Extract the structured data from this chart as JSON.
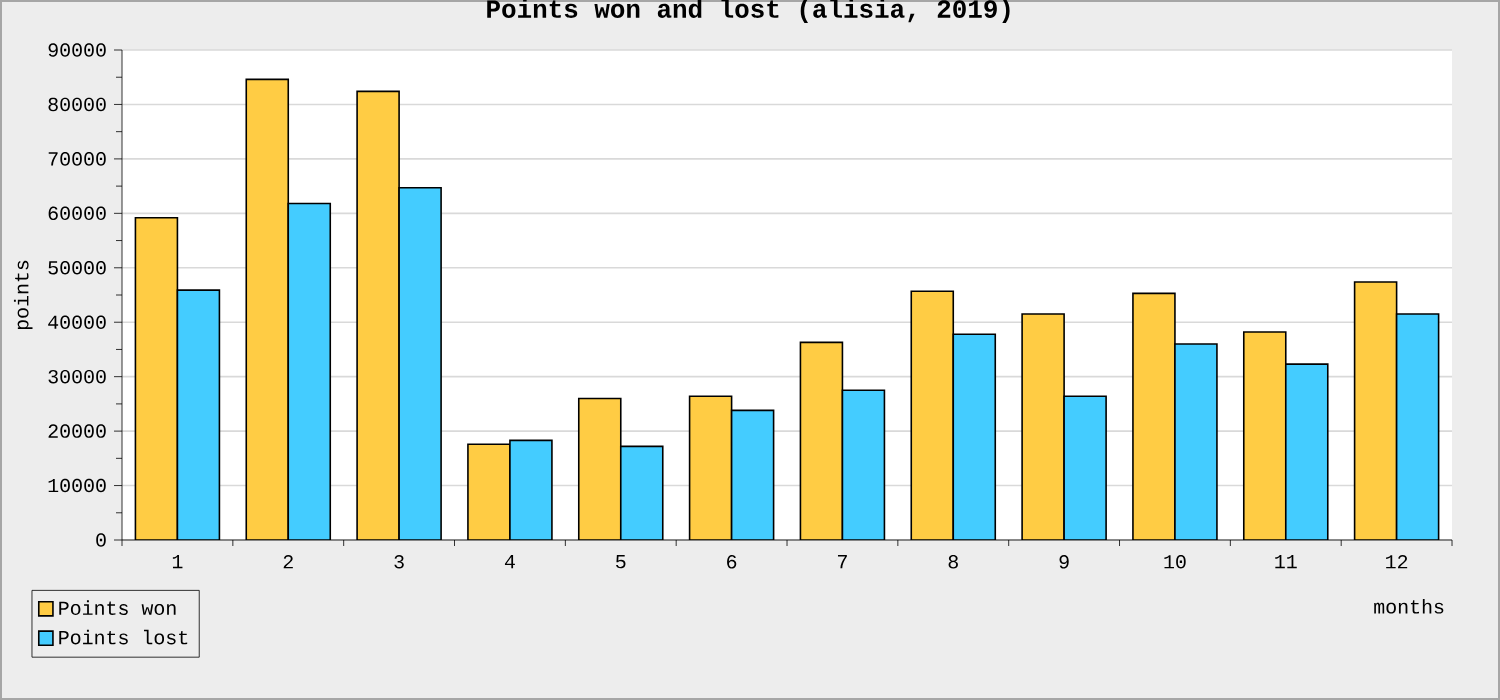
{
  "chart_data": {
    "type": "bar",
    "title": "Points won and lost (alisia, 2019)",
    "xlabel": "months",
    "ylabel": "points",
    "categories": [
      "1",
      "2",
      "3",
      "4",
      "5",
      "6",
      "7",
      "8",
      "9",
      "10",
      "11",
      "12"
    ],
    "series": [
      {
        "name": "Points won",
        "color": "#ffcc44",
        "values": [
          59200,
          84600,
          82400,
          17600,
          26000,
          26400,
          36300,
          45700,
          41500,
          45300,
          38200,
          47400
        ]
      },
      {
        "name": "Points lost",
        "color": "#44ccff",
        "values": [
          45900,
          61800,
          64700,
          18300,
          17200,
          23800,
          27500,
          37800,
          26400,
          36000,
          32300,
          41500
        ]
      }
    ],
    "ylim": [
      0,
      90000
    ],
    "yticks": [
      0,
      10000,
      20000,
      30000,
      40000,
      50000,
      60000,
      70000,
      80000,
      90000
    ],
    "grid": "y",
    "legend": "bottom left"
  }
}
